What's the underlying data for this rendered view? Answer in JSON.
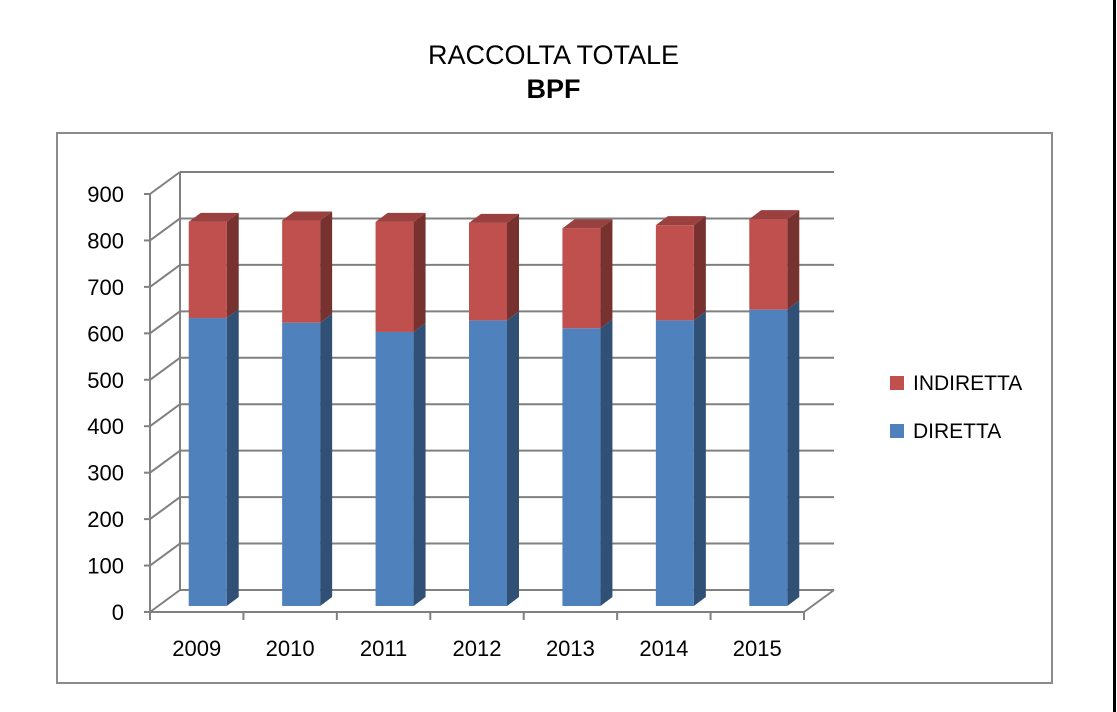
{
  "chart_data": {
    "type": "bar",
    "stacked": true,
    "three_d": true,
    "title": "RACCOLTA TOTALE",
    "subtitle": "BPF",
    "categories": [
      "2009",
      "2010",
      "2011",
      "2012",
      "2013",
      "2014",
      "2015"
    ],
    "series": [
      {
        "name": "DIRETTA",
        "color": "#4f81bd",
        "values": [
          620,
          610,
          590,
          615,
          598,
          615,
          638
        ]
      },
      {
        "name": "INDIRETTA",
        "color": "#c0504d",
        "values": [
          207,
          220,
          237,
          210,
          215,
          205,
          195
        ]
      }
    ],
    "y_ticks": [
      "0",
      "100",
      "200",
      "300",
      "400",
      "500",
      "600",
      "700",
      "800",
      "900"
    ],
    "ylim": [
      0,
      900
    ],
    "grid": true,
    "legend_position": "right"
  }
}
